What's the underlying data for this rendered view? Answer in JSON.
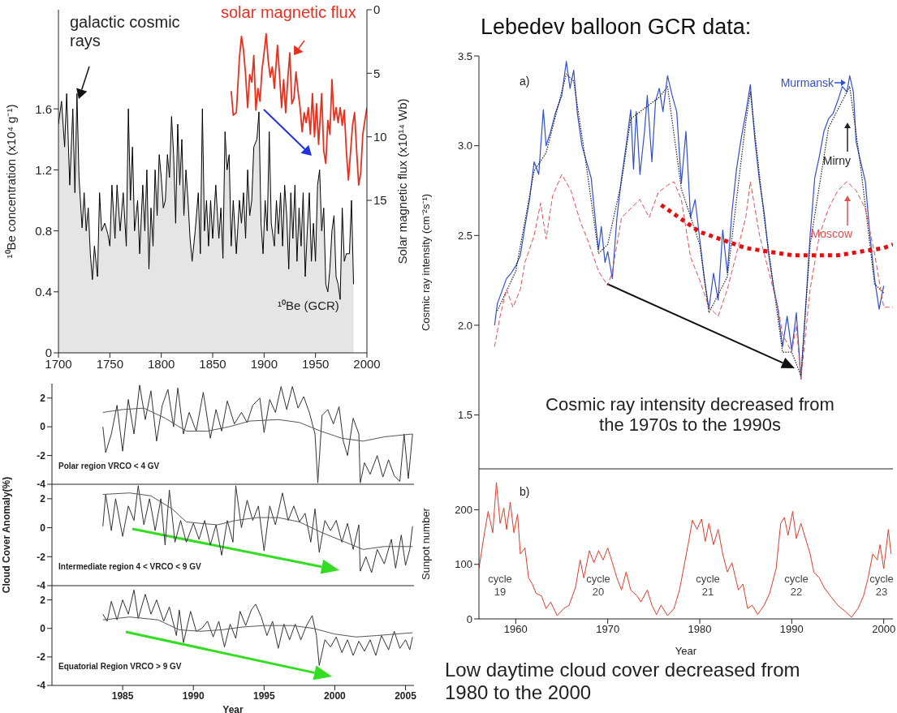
{
  "chart_data": [
    {
      "type": "line",
      "xlabel": null,
      "ylabel": "¹⁰Be concentration (x10⁴ g⁻¹)",
      "y2label": "Solar magnetic flux (x10¹⁴ Wb)",
      "annotations": [
        "galactic cosmic rays",
        "solar magnetic flux",
        "¹⁰Be (GCR)"
      ],
      "xlim": [
        1700,
        2000
      ],
      "xticks": [
        1700,
        1750,
        1800,
        1850,
        1900,
        1950,
        2000
      ],
      "ylim": [
        0,
        2.25
      ],
      "yticks": [
        0,
        0.4,
        0.8,
        1.2,
        1.6
      ],
      "y2lim": [
        27,
        0
      ],
      "y2ticks": [
        0,
        5,
        10,
        15
      ],
      "series": [
        {
          "type": "area",
          "color": "#000000",
          "x": [
            1700,
            1703,
            1706,
            1708,
            1711,
            1714,
            1716,
            1718,
            1720,
            1723,
            1725,
            1727,
            1729,
            1731,
            1733,
            1735,
            1738,
            1740,
            1742,
            1745,
            1748,
            1750,
            1752,
            1755,
            1757,
            1760,
            1763,
            1766,
            1768,
            1770,
            1772,
            1774,
            1777,
            1779,
            1782,
            1784,
            1786,
            1788,
            1790,
            1792,
            1794,
            1796,
            1798,
            1800,
            1802,
            1804,
            1806,
            1808,
            1810,
            1812,
            1814,
            1816,
            1818,
            1820,
            1822,
            1824,
            1826,
            1828,
            1830,
            1833,
            1836,
            1838,
            1840,
            1842,
            1844,
            1846,
            1848,
            1850,
            1853,
            1856,
            1858,
            1860,
            1862,
            1864,
            1866,
            1868,
            1870,
            1873,
            1876,
            1878,
            1880,
            1882,
            1884,
            1886,
            1888,
            1890,
            1893,
            1895,
            1897,
            1899,
            1901,
            1903,
            1905,
            1907,
            1910,
            1912,
            1914,
            1916,
            1918,
            1920,
            1922,
            1924,
            1926,
            1928,
            1930,
            1932,
            1934,
            1936,
            1938,
            1940,
            1942,
            1944,
            1946,
            1948,
            1950,
            1952,
            1954,
            1956,
            1958,
            1960,
            1962,
            1964,
            1966,
            1968,
            1970,
            1972,
            1974,
            1976,
            1978,
            1980,
            1983,
            1985,
            1987
          ],
          "values": [
            1.5,
            1.65,
            1.35,
            1.7,
            1.1,
            1.6,
            1.05,
            1.7,
            1.15,
            0.82,
            1.05,
            0.8,
            0.95,
            0.65,
            0.48,
            0.7,
            0.5,
            1.05,
            0.8,
            0.85,
            0.78,
            0.7,
            1.1,
            0.75,
            1.1,
            0.8,
            1.05,
            0.7,
            1.6,
            1.0,
            1.35,
            0.8,
            1.0,
            0.65,
            1.1,
            0.8,
            1.2,
            0.55,
            0.95,
            0.7,
            1.2,
            0.9,
            1.3,
            1.15,
            0.95,
            1.0,
            1.3,
            1.15,
            1.55,
            1.3,
            0.85,
            1.5,
            1.1,
            1.4,
            0.9,
            1.2,
            1.0,
            0.75,
            0.6,
            0.8,
            1.05,
            0.65,
            1.6,
            0.8,
            1.0,
            0.7,
            1.0,
            0.75,
            1.1,
            0.75,
            0.95,
            0.62,
            1.45,
            1.2,
            1.3,
            0.7,
            1.0,
            0.65,
            1.0,
            0.85,
            1.05,
            0.75,
            1.2,
            0.9,
            1.0,
            1.35,
            1.4,
            1.58,
            0.85,
            0.65,
            1.0,
            0.8,
            1.45,
            0.85,
            0.7,
            1.0,
            0.78,
            1.05,
            0.7,
            1.1,
            0.9,
            0.55,
            1.05,
            0.75,
            1.1,
            0.6,
            0.95,
            0.7,
            1.05,
            0.5,
            0.8,
            1.05,
            0.6,
            0.85,
            0.6,
            1.1,
            1.2,
            0.8,
            0.95,
            0.45,
            0.4,
            0.55,
            0.8,
            0.9,
            0.5,
            0.45,
            0.35,
            0.95,
            0.6,
            0.65,
            0.65,
            1.0,
            0.45
          ]
        },
        {
          "color": "#e8301e",
          "axis": "y2",
          "x": [
            1868,
            1870,
            1873,
            1876,
            1878,
            1880,
            1882,
            1884,
            1886,
            1888,
            1890,
            1892,
            1894,
            1896,
            1898,
            1900,
            1902,
            1904,
            1906,
            1908,
            1910,
            1913,
            1915,
            1917,
            1919,
            1921,
            1923,
            1925,
            1927,
            1929,
            1931,
            1933,
            1935,
            1937,
            1939,
            1941,
            1943,
            1945,
            1947,
            1949,
            1951,
            1953,
            1956,
            1958,
            1960,
            1962,
            1964,
            1966,
            1968,
            1970,
            1972,
            1974,
            1976,
            1978,
            1980,
            1982,
            1984,
            1986,
            1988,
            1990,
            1992,
            1994,
            1996,
            1998,
            2000
          ],
          "values": [
            6.4,
            8.3,
            8.1,
            3.8,
            2.1,
            3.2,
            5.1,
            7.7,
            5.1,
            5.7,
            3.6,
            7.9,
            6.2,
            7.2,
            4.7,
            3.4,
            1.9,
            4.0,
            5.3,
            4.5,
            6.2,
            2.8,
            5.1,
            7.7,
            5.5,
            8.1,
            5.5,
            3.4,
            7.4,
            7.0,
            4.9,
            6.4,
            7.7,
            9.6,
            8.1,
            8.9,
            7.7,
            9.8,
            6.6,
            10.0,
            7.4,
            10.6,
            6.6,
            11.1,
            12.1,
            8.7,
            9.8,
            5.5,
            8.7,
            7.7,
            8.9,
            7.7,
            9.1,
            7.9,
            11.1,
            13.4,
            11.3,
            9.1,
            8.1,
            11.1,
            13.8,
            12.8,
            9.8,
            8.7,
            7.7
          ]
        }
      ]
    },
    {
      "type": "line",
      "annotations": [
        "Polar region VRCO < 4 GV"
      ],
      "xlim": [
        1980,
        2005.6
      ],
      "xticks": [
        1985,
        1990,
        1995,
        2000,
        2005
      ],
      "ylim": [
        -4,
        3
      ],
      "yticks": [
        -4,
        -2,
        0,
        2
      ],
      "tick_labels": "y",
      "series": [
        {
          "color": "#333333",
          "x": [
            1983.6,
            1983.8,
            1984.2,
            1984.6,
            1985.0,
            1985.4,
            1985.8,
            1986.2,
            1986.6,
            1987.0,
            1987.4,
            1987.8,
            1988.2,
            1988.6,
            1988.9,
            1989.3,
            1989.7,
            1990.2,
            1990.7,
            1991.2,
            1991.6,
            1992.0,
            1992.4,
            1992.9,
            1993.4,
            1993.8,
            1994.2,
            1994.7,
            1995.0,
            1995.4,
            1995.8,
            1996.2,
            1996.6,
            1997.0,
            1997.4,
            1997.8,
            1998.2,
            1998.6,
            1998.8,
            1999.1,
            1999.5,
            1999.9,
            2000.3,
            2000.6,
            2000.9,
            2001.3,
            2001.7,
            2001.8,
            2002.1,
            2002.5,
            2003.0,
            2003.4,
            2003.8,
            2004.2,
            2004.6,
            2004.9,
            2005.2,
            2005.5
          ],
          "values": [
            0,
            -1.8,
            -0.5,
            1.5,
            -1.7,
            1.9,
            -0.5,
            2.9,
            0.5,
            2.5,
            -1.0,
            1.5,
            2.6,
            0,
            2.7,
            -0.5,
            1.0,
            -0.3,
            2.4,
            -0.8,
            1.2,
            -0.3,
            1.8,
            0.2,
            1.0,
            0.3,
            1.5,
            2.0,
            -0.4,
            1.9,
            1.0,
            2.8,
            1.2,
            2.8,
            1.3,
            2.1,
            1.0,
            -0.5,
            -3.9,
            0.8,
            1.2,
            0.2,
            1.4,
            -1.0,
            -2.0,
            0.6,
            -0.5,
            -3.9,
            -2.5,
            -3.3,
            -2.0,
            -3.5,
            -2.3,
            -3.4,
            -3.8,
            -0.5,
            -3.6,
            -0.5
          ]
        },
        {
          "color": "#555555",
          "x": [
            1983.6,
            1985,
            1986.5,
            1988,
            1989.5,
            1991,
            1992.5,
            1994,
            1996,
            1997.5,
            1999,
            2000.5,
            2002,
            2003.5,
            2005.5
          ],
          "values": [
            1.0,
            1.2,
            1.3,
            0.6,
            -0.3,
            -0.3,
            0,
            0.4,
            0.5,
            0.3,
            -0.3,
            -0.8,
            -1.0,
            -0.7,
            -0.5
          ]
        }
      ]
    },
    {
      "type": "line",
      "ylabel": "Cloud Cover Anomaly(%)",
      "annotations": [
        "Intermediate region 4 < VRCO < 9 GV"
      ],
      "xlim": [
        1980,
        2005.6
      ],
      "xticks": [
        1985,
        1990,
        1995,
        2000,
        2005
      ],
      "ylim": [
        -4,
        3
      ],
      "yticks": [
        -4,
        -2,
        0,
        2
      ],
      "tick_labels": "y",
      "series": [
        {
          "color": "#333333",
          "x": [
            1983.6,
            1983.8,
            1984.2,
            1984.5,
            1985.0,
            1985.4,
            1985.8,
            1986.1,
            1986.5,
            1986.9,
            1987.3,
            1987.7,
            1988.0,
            1988.3,
            1988.7,
            1989.1,
            1989.5,
            1990.0,
            1990.4,
            1990.8,
            1991.2,
            1991.6,
            1992.0,
            1992.4,
            1992.8,
            1993.0,
            1993.4,
            1993.8,
            1994.2,
            1994.6,
            1995.0,
            1995.4,
            1995.8,
            1996.3,
            1996.7,
            1997.1,
            1997.5,
            1997.9,
            1998.3,
            1998.6,
            1998.9,
            1999.3,
            1999.7,
            2000.1,
            2000.5,
            2000.9,
            2001.3,
            2001.7,
            2001.8,
            2002.2,
            2002.6,
            2003.0,
            2003.5,
            2004.0,
            2004.3,
            2004.7,
            2005.0,
            2005.3,
            2005.5
          ],
          "values": [
            0.1,
            2.3,
            -0.2,
            2.0,
            -0.6,
            1.5,
            0.5,
            2.9,
            0.2,
            2.0,
            -0.2,
            2.0,
            -1.2,
            2.6,
            -1.0,
            0.5,
            -1.0,
            0.3,
            -0.8,
            0.5,
            -1.2,
            0.2,
            -1.9,
            0.5,
            -1.0,
            2.9,
            0,
            1.9,
            0.5,
            1.5,
            -1.6,
            1.5,
            0.2,
            2.4,
            0.5,
            1.5,
            0.4,
            1.0,
            -1.0,
            1.3,
            -1.7,
            0.5,
            -0.2,
            0.5,
            -1.0,
            0.3,
            -1.5,
            0.2,
            -3.0,
            -2.0,
            -3.1,
            -1.5,
            -2.5,
            -0.8,
            -2.8,
            -0.5,
            -2.6,
            -1.5,
            0.1
          ]
        },
        {
          "color": "#555555",
          "x": [
            1983.6,
            1985.5,
            1987,
            1988.5,
            1989.5,
            1990.5,
            1991.7,
            1993,
            1994.5,
            1996,
            1997.5,
            1999,
            2000.5,
            2002,
            2003.5,
            2005.5
          ],
          "values": [
            2.3,
            2.4,
            2.2,
            1.3,
            0.4,
            0.3,
            0.2,
            0.5,
            0.7,
            0.7,
            0.4,
            -0.3,
            -0.9,
            -1.5,
            -1.3,
            -1.3
          ]
        }
      ]
    },
    {
      "type": "line",
      "xlabel": "Year",
      "annotations": [
        "Equatorial Region VRCO > 9 GV"
      ],
      "xlim": [
        1980,
        2005.6
      ],
      "xticks": [
        1985,
        1990,
        1995,
        2000,
        2005
      ],
      "ylim": [
        -4,
        3
      ],
      "yticks": [
        -4,
        -2,
        0,
        2
      ],
      "series": [
        {
          "color": "#333333",
          "x": [
            1983.6,
            1983.9,
            1984.2,
            1984.6,
            1985.0,
            1985.4,
            1985.8,
            1986.1,
            1986.6,
            1987.0,
            1987.4,
            1987.9,
            1988.3,
            1988.8,
            1989.0,
            1989.3,
            1989.8,
            1990.2,
            1990.6,
            1991.0,
            1991.4,
            1991.8,
            1992.2,
            1992.6,
            1993.0,
            1993.3,
            1993.7,
            1994.1,
            1994.4,
            1994.8,
            1995.2,
            1995.6,
            1996.0,
            1996.4,
            1996.8,
            1997.2,
            1997.6,
            1998.0,
            1998.4,
            1998.7,
            1998.9,
            1999.3,
            1999.7,
            2000.1,
            2000.5,
            2000.9,
            2001.3,
            2001.7,
            2002.1,
            2002.5,
            2002.9,
            2003.3,
            2003.8,
            2004.2,
            2004.6,
            2005.0,
            2005.3,
            2005.5
          ],
          "values": [
            1.0,
            0.5,
            1.9,
            0.6,
            2.0,
            1.0,
            2.7,
            0.7,
            2.4,
            1.0,
            2.0,
            0.5,
            1.5,
            -0.5,
            1.3,
            -1.0,
            1.2,
            -0.2,
            0,
            0.5,
            -0.6,
            0.5,
            -1.3,
            0.3,
            -0.7,
            1.2,
            0.2,
            1.3,
            1.7,
            0.8,
            -0.5,
            0.5,
            -1.4,
            0.3,
            -0.8,
            0.3,
            -0.8,
            0.2,
            0.9,
            -0.5,
            -2.6,
            -0.8,
            -1.3,
            -0.6,
            -1.7,
            -0.8,
            -1.9,
            -0.9,
            -1.6,
            -0.8,
            -1.9,
            -0.5,
            -1.5,
            -0.2,
            -1.4,
            -0.8,
            -1.5,
            -0.6
          ]
        },
        {
          "color": "#555555",
          "x": [
            1983.6,
            1985.5,
            1987.5,
            1989,
            1990.5,
            1992,
            1993.5,
            1995,
            1997,
            1998.5,
            2000,
            2001.5,
            2003,
            2005.5
          ],
          "values": [
            0.6,
            0.8,
            0.6,
            -0.1,
            -0.2,
            -0.1,
            0.1,
            0.2,
            0.2,
            0,
            -0.4,
            -0.6,
            -0.5,
            -0.3
          ]
        }
      ]
    },
    {
      "type": "line",
      "title": "Lebedev balloon GCR data:",
      "ylabel": "Cosmic ray intensity (cm⁻²s⁻¹)",
      "annotations": [
        "a)",
        "Cosmic ray intensity decreased from the 1970s to the 1990s"
      ],
      "xlim": [
        1956,
        2001
      ],
      "xticks": [
        1960,
        1970,
        1980,
        1990,
        2000
      ],
      "ylim": [
        1.2,
        3.5
      ],
      "legend": "top right",
      "yticks": [
        1.5,
        {
          "value": 2,
          "label": "2.0"
        },
        2.5,
        {
          "value": 3,
          "label": "3.0"
        },
        3.5
      ],
      "tick_labels": "y",
      "series": [
        {
          "name": "Murmansk",
          "color": "#3050d0",
          "x": [
            1957.7,
            1958.0,
            1958.5,
            1959.0,
            1959.5,
            1960.0,
            1960.5,
            1961.0,
            1961.5,
            1962.0,
            1962.5,
            1963.0,
            1963.3,
            1963.8,
            1964.3,
            1965.0,
            1965.5,
            1965.9,
            1966.3,
            1966.7,
            1967.2,
            1967.7,
            1968.2,
            1968.7,
            1969.0,
            1969.3,
            1969.7,
            1970.0,
            1970.5,
            1971.0,
            1971.5,
            1972.0,
            1972.5,
            1972.8,
            1973.1,
            1973.5,
            1974.0,
            1974.3,
            1974.8,
            1975.2,
            1975.6,
            1976.0,
            1976.5,
            1977.0,
            1977.5,
            1978.0,
            1978.5,
            1979.0,
            1979.5,
            1980.0,
            1980.5,
            1981.0,
            1981.5,
            1982.0,
            1982.5,
            1983.0,
            1983.5,
            1984.0,
            1984.5,
            1985.0,
            1985.5,
            1986.0,
            1986.5,
            1987.0,
            1987.5,
            1988.0,
            1988.5,
            1989.0,
            1989.5,
            1990.0,
            1990.5,
            1991.0,
            1991.5,
            1992.0,
            1992.5,
            1993.0,
            1993.5,
            1994.0,
            1994.5,
            1995.0,
            1995.5,
            1996.0,
            1996.3,
            1996.7,
            1997.0,
            1997.5,
            1998.0,
            1998.5,
            1999.0,
            1999.5,
            2000.0
          ],
          "values": [
            2.0,
            2.12,
            2.19,
            2.26,
            2.29,
            2.33,
            2.39,
            2.55,
            2.7,
            2.91,
            2.84,
            3.2,
            3.0,
            3.08,
            3.18,
            3.28,
            3.47,
            3.32,
            3.42,
            3.18,
            3.0,
            2.91,
            2.82,
            2.56,
            2.42,
            2.55,
            2.35,
            2.41,
            2.26,
            2.6,
            2.82,
            3.0,
            3.2,
            2.87,
            3.19,
            2.84,
            3.08,
            3.28,
            2.91,
            3.25,
            3.32,
            3.19,
            3.39,
            3.28,
            3.19,
            2.79,
            3.08,
            2.6,
            2.7,
            2.48,
            2.26,
            2.09,
            2.29,
            2.14,
            2.53,
            2.29,
            2.63,
            2.87,
            3.04,
            3.18,
            3.34,
            3.03,
            2.8,
            2.63,
            2.39,
            2.22,
            2.09,
            1.88,
            2.05,
            1.86,
            2.07,
            1.7,
            2.09,
            2.5,
            2.82,
            2.94,
            3.08,
            3.15,
            3.18,
            3.25,
            3.33,
            3.3,
            3.39,
            3.3,
            3.02,
            2.91,
            2.8,
            2.5,
            2.26,
            2.09,
            2.22
          ]
        },
        {
          "name": "Mirny",
          "color": "#222222",
          "line_style": "dotted",
          "x": [
            1958,
            1960,
            1962,
            1963.3,
            1965.5,
            1966.3,
            1967.7,
            1969,
            1970,
            1971.5,
            1972.5,
            1974.3,
            1975.6,
            1976.5,
            1978,
            1980,
            1981,
            1983,
            1985,
            1985.5,
            1987,
            1989,
            1990,
            1991,
            1992,
            1994,
            1995.5,
            1996.3,
            1997.5,
            1999,
            2000
          ],
          "values": [
            2.08,
            2.3,
            2.86,
            2.96,
            3.4,
            3.36,
            2.88,
            2.4,
            2.45,
            2.8,
            3.15,
            3.22,
            3.27,
            3.33,
            2.76,
            2.45,
            2.07,
            2.27,
            3.13,
            3.3,
            2.6,
            1.85,
            1.85,
            1.72,
            2.45,
            3.1,
            3.25,
            3.33,
            2.88,
            2.23,
            2.18
          ]
        },
        {
          "name": "Moscow",
          "color": "#e05050",
          "line_style": "dashed",
          "x": [
            1957.7,
            1958.3,
            1959,
            1959.7,
            1960.5,
            1961,
            1962,
            1962.7,
            1963.3,
            1964,
            1965,
            1966,
            1967,
            1968,
            1969,
            1970,
            1970.5,
            1971.5,
            1972.5,
            1973.5,
            1974.5,
            1975.5,
            1976.5,
            1977.2,
            1978,
            1979,
            1980,
            1981,
            1982,
            1983,
            1984,
            1985,
            1985.5,
            1986.5,
            1987.5,
            1988.5,
            1989,
            1990,
            1990.5,
            1991,
            1992,
            1993,
            1994,
            1995,
            1996,
            1997,
            1998,
            1999,
            2000,
            2001
          ],
          "values": [
            1.88,
            2.05,
            2.2,
            2.1,
            2.2,
            2.35,
            2.5,
            2.68,
            2.48,
            2.72,
            2.84,
            2.75,
            2.58,
            2.45,
            2.3,
            2.22,
            2.3,
            2.6,
            2.65,
            2.7,
            2.6,
            2.74,
            2.78,
            2.8,
            2.7,
            2.38,
            2.25,
            2.1,
            2.05,
            2.2,
            2.4,
            2.6,
            2.8,
            2.5,
            2.3,
            2.1,
            1.95,
            1.85,
            2.0,
            1.7,
            2.2,
            2.5,
            2.65,
            2.75,
            2.8,
            2.75,
            2.65,
            2.4,
            2.1,
            2.1
          ]
        },
        {
          "type": "line",
          "color": "#e01010",
          "line_style": "dotted",
          "x": [
            1975.8,
            1980,
            1985,
            1990,
            1995,
            2000,
            2001
          ],
          "values": [
            2.67,
            2.52,
            2.43,
            2.39,
            2.39,
            2.43,
            2.45
          ]
        }
      ]
    },
    {
      "type": "line",
      "xlabel": "Year",
      "ylabel": "Sunpot number",
      "annotations": [
        "b)",
        "cycle 19",
        "cycle 20",
        "cycle 21",
        "cycle 22",
        "cycle 23",
        "Low daytime cloud cover decreased from 1980 to the 2000"
      ],
      "xlim": [
        1956,
        2001
      ],
      "xticks": [
        1960,
        1970,
        1980,
        1990,
        2000
      ],
      "ylim": [
        0,
        275
      ],
      "yticks": [
        0,
        100,
        200
      ],
      "series": [
        {
          "color": "#e03c28",
          "x": [
            1956.0,
            1956.5,
            1957.0,
            1957.5,
            1957.9,
            1958.3,
            1958.7,
            1959.0,
            1959.4,
            1959.8,
            1960.2,
            1960.5,
            1961.0,
            1961.4,
            1961.8,
            1962.2,
            1962.8,
            1963.3,
            1963.8,
            1964.5,
            1965.2,
            1965.8,
            1966.5,
            1967.0,
            1967.4,
            1968.0,
            1968.5,
            1969.0,
            1969.5,
            1970.0,
            1970.5,
            1971.0,
            1971.5,
            1972.0,
            1972.5,
            1973.2,
            1973.6,
            1974.3,
            1974.8,
            1975.3,
            1975.8,
            1976.5,
            1977.2,
            1977.8,
            1978.3,
            1978.8,
            1979.2,
            1979.7,
            1980.2,
            1980.6,
            1981.0,
            1981.5,
            1982.0,
            1982.5,
            1983.0,
            1983.5,
            1984.2,
            1984.7,
            1985.2,
            1985.7,
            1986.3,
            1987.0,
            1987.6,
            1988.3,
            1988.8,
            1989.2,
            1989.6,
            1990.1,
            1990.5,
            1991.0,
            1991.5,
            1992.0,
            1992.4,
            1993.0,
            1993.5,
            1994.2,
            1995.0,
            1995.8,
            1996.5,
            1997.2,
            1997.8,
            1998.3,
            1998.8,
            1999.3,
            1999.6,
            2000.0,
            2000.5,
            2000.8
          ],
          "values": [
            92,
            147,
            197,
            158,
            250,
            175,
            203,
            164,
            214,
            158,
            192,
            119,
            130,
            75,
            64,
            47,
            42,
            19,
            31,
            6,
            19,
            25,
            58,
            108,
            75,
            125,
            103,
            125,
            108,
            130,
            103,
            75,
            53,
            86,
            53,
            42,
            31,
            53,
            25,
            8,
            25,
            6,
            19,
            53,
            97,
            142,
            181,
            164,
            183,
            142,
            175,
            136,
            164,
            119,
            86,
            103,
            53,
            64,
            19,
            25,
            8,
            25,
            47,
            92,
            175,
            186,
            153,
            197,
            147,
            175,
            147,
            119,
            86,
            75,
            58,
            42,
            25,
            14,
            3,
            19,
            42,
            75,
            119,
            108,
            136,
            92,
            164,
            119
          ]
        }
      ]
    }
  ]
}
